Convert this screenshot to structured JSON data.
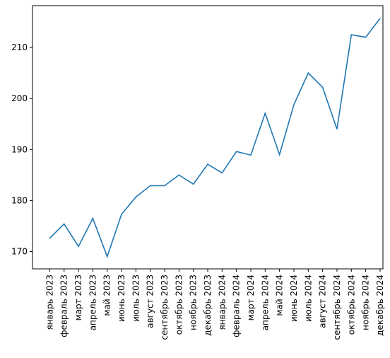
{
  "chart_data": {
    "type": "line",
    "title": "",
    "xlabel": "",
    "ylabel": "",
    "categories": [
      "январь 2023",
      "февраль 2023",
      "март 2023",
      "апрель 2023",
      "май 2023",
      "июнь 2023",
      "июль 2023",
      "август 2023",
      "сентябрь 2023",
      "октябрь 2023",
      "ноябрь 2023",
      "декабрь 2023",
      "январь 2024",
      "февраль 2024",
      "март 2024",
      "апрель 2024",
      "май 2024",
      "июнь 2024",
      "июль 2024",
      "август 2024",
      "сентябрь 2024",
      "октябрь 2024",
      "ноябрь 2024",
      "декабрь 2024"
    ],
    "values": [
      172.6,
      175.4,
      171.0,
      176.5,
      169.0,
      177.3,
      180.7,
      182.9,
      182.9,
      185.0,
      183.2,
      187.1,
      185.4,
      189.6,
      188.9,
      197.1,
      189.0,
      198.8,
      205.0,
      202.2,
      194.0,
      212.5,
      212.0,
      215.7
    ],
    "ylim": [
      166.6,
      218.2
    ],
    "yticks": [
      170,
      180,
      190,
      200,
      210
    ],
    "grid": false,
    "line_color": "#1f77b4"
  }
}
